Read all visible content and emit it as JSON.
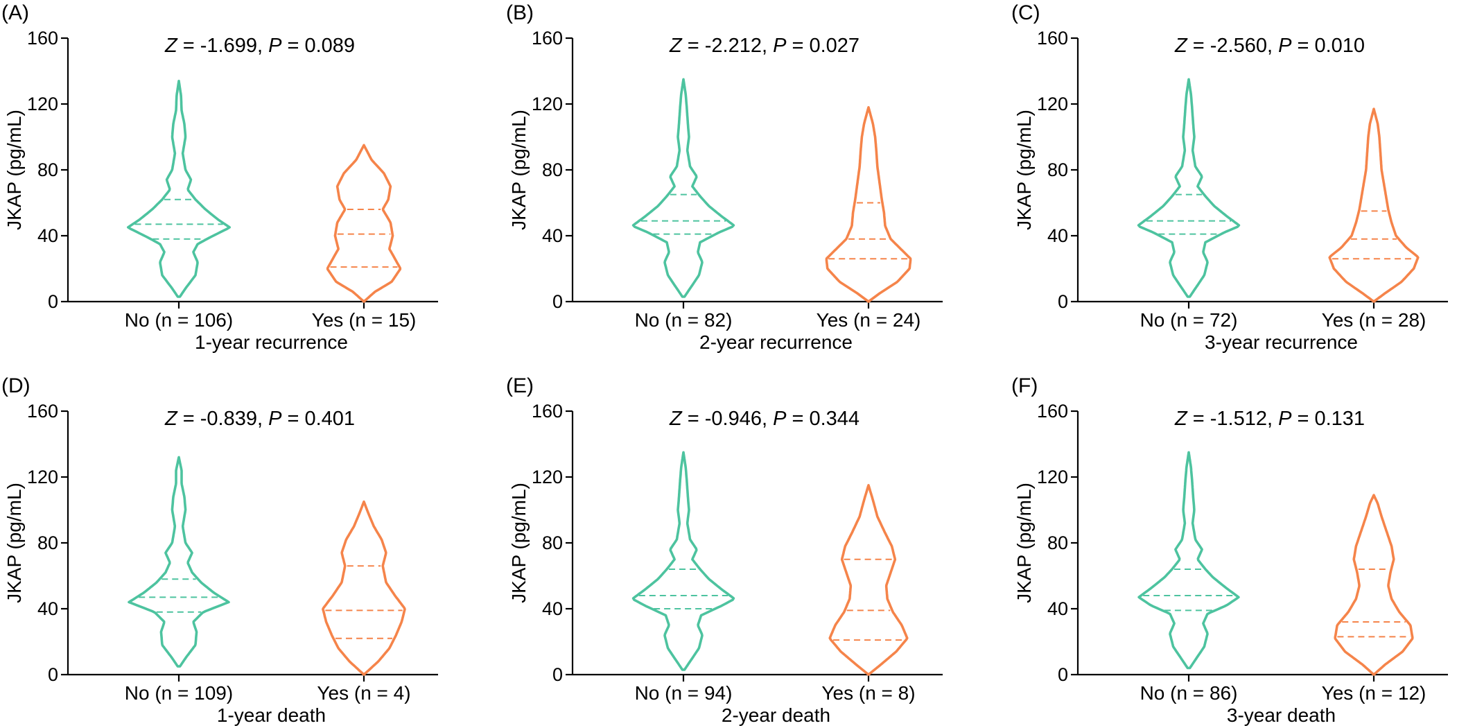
{
  "colors": {
    "no": "#4dc39f",
    "yes": "#f5844a"
  },
  "chart_data": [
    {
      "type": "violin",
      "panel": "(A)",
      "stat": {
        "z_label": "Z",
        "z": "-1.699",
        "p_label": "P",
        "p": "0.089"
      },
      "ylabel": "JKAP (pg/mL)",
      "ylim": [
        0,
        160
      ],
      "yticks": [
        0,
        40,
        80,
        120,
        160
      ],
      "xlabel": "1-year recurrence",
      "categories": [
        "No (n = 106)",
        "Yes (n = 15)"
      ],
      "series": [
        {
          "group": "No",
          "range": [
            3,
            134
          ],
          "quartiles": [
            38,
            47,
            62
          ],
          "profile": [
            [
              3,
              0.02
            ],
            [
              8,
              0.12
            ],
            [
              16,
              0.3
            ],
            [
              24,
              0.34
            ],
            [
              30,
              0.26
            ],
            [
              35,
              0.34
            ],
            [
              40,
              0.62
            ],
            [
              45,
              0.92
            ],
            [
              50,
              0.7
            ],
            [
              56,
              0.48
            ],
            [
              62,
              0.3
            ],
            [
              68,
              0.16
            ],
            [
              74,
              0.22
            ],
            [
              80,
              0.12
            ],
            [
              90,
              0.07
            ],
            [
              100,
              0.12
            ],
            [
              108,
              0.1
            ],
            [
              116,
              0.05
            ],
            [
              125,
              0.04
            ],
            [
              134,
              0.0
            ]
          ]
        },
        {
          "group": "Yes",
          "range": [
            0,
            95
          ],
          "quartiles": [
            21,
            41,
            56
          ],
          "profile": [
            [
              0,
              0.0
            ],
            [
              6,
              0.2
            ],
            [
              12,
              0.5
            ],
            [
              20,
              0.66
            ],
            [
              26,
              0.56
            ],
            [
              32,
              0.46
            ],
            [
              40,
              0.52
            ],
            [
              48,
              0.48
            ],
            [
              56,
              0.34
            ],
            [
              62,
              0.44
            ],
            [
              70,
              0.48
            ],
            [
              78,
              0.36
            ],
            [
              86,
              0.14
            ],
            [
              95,
              0.0
            ]
          ]
        }
      ]
    },
    {
      "type": "violin",
      "panel": "(B)",
      "stat": {
        "z_label": "Z",
        "z": "-2.212",
        "p_label": "P",
        "p": "0.027"
      },
      "ylabel": "JKAP (pg/mL)",
      "ylim": [
        0,
        160
      ],
      "yticks": [
        0,
        40,
        80,
        120,
        160
      ],
      "xlabel": "2-year recurrence",
      "categories": [
        "No (n = 82)",
        "Yes (n = 24)"
      ],
      "series": [
        {
          "group": "No",
          "range": [
            3,
            135
          ],
          "quartiles": [
            41,
            49,
            65
          ],
          "profile": [
            [
              3,
              0.02
            ],
            [
              8,
              0.12
            ],
            [
              16,
              0.28
            ],
            [
              24,
              0.34
            ],
            [
              30,
              0.26
            ],
            [
              36,
              0.3
            ],
            [
              42,
              0.64
            ],
            [
              46,
              0.92
            ],
            [
              52,
              0.68
            ],
            [
              58,
              0.46
            ],
            [
              64,
              0.3
            ],
            [
              70,
              0.16
            ],
            [
              76,
              0.24
            ],
            [
              82,
              0.12
            ],
            [
              92,
              0.07
            ],
            [
              100,
              0.1
            ],
            [
              108,
              0.08
            ],
            [
              118,
              0.06
            ],
            [
              126,
              0.04
            ],
            [
              135,
              0.0
            ]
          ]
        },
        {
          "group": "Yes",
          "range": [
            0,
            118
          ],
          "quartiles": [
            26,
            38,
            60
          ],
          "profile": [
            [
              0,
              0.0
            ],
            [
              5,
              0.2
            ],
            [
              12,
              0.52
            ],
            [
              20,
              0.74
            ],
            [
              26,
              0.76
            ],
            [
              32,
              0.58
            ],
            [
              38,
              0.4
            ],
            [
              46,
              0.3
            ],
            [
              54,
              0.28
            ],
            [
              62,
              0.24
            ],
            [
              72,
              0.2
            ],
            [
              82,
              0.16
            ],
            [
              92,
              0.14
            ],
            [
              100,
              0.12
            ],
            [
              108,
              0.08
            ],
            [
              118,
              0.0
            ]
          ]
        }
      ]
    },
    {
      "type": "violin",
      "panel": "(C)",
      "stat": {
        "z_label": "Z",
        "z": "-2.560",
        "p_label": "P",
        "p": "0.010"
      },
      "ylabel": "JKAP (pg/mL)",
      "ylim": [
        0,
        160
      ],
      "yticks": [
        0,
        40,
        80,
        120,
        160
      ],
      "xlabel": "3-year recurrence",
      "categories": [
        "No (n = 72)",
        "Yes (n = 28)"
      ],
      "series": [
        {
          "group": "No",
          "range": [
            3,
            135
          ],
          "quartiles": [
            41,
            49,
            65
          ],
          "profile": [
            [
              3,
              0.02
            ],
            [
              8,
              0.12
            ],
            [
              16,
              0.28
            ],
            [
              24,
              0.34
            ],
            [
              30,
              0.26
            ],
            [
              36,
              0.3
            ],
            [
              42,
              0.64
            ],
            [
              46,
              0.92
            ],
            [
              52,
              0.68
            ],
            [
              58,
              0.46
            ],
            [
              64,
              0.3
            ],
            [
              70,
              0.16
            ],
            [
              76,
              0.24
            ],
            [
              82,
              0.12
            ],
            [
              92,
              0.07
            ],
            [
              100,
              0.1
            ],
            [
              108,
              0.08
            ],
            [
              118,
              0.06
            ],
            [
              126,
              0.04
            ],
            [
              135,
              0.0
            ]
          ]
        },
        {
          "group": "Yes",
          "range": [
            0,
            117
          ],
          "quartiles": [
            26,
            38,
            55
          ],
          "profile": [
            [
              0,
              0.0
            ],
            [
              5,
              0.2
            ],
            [
              12,
              0.5
            ],
            [
              20,
              0.72
            ],
            [
              27,
              0.8
            ],
            [
              33,
              0.58
            ],
            [
              40,
              0.4
            ],
            [
              48,
              0.32
            ],
            [
              56,
              0.26
            ],
            [
              64,
              0.22
            ],
            [
              72,
              0.18
            ],
            [
              80,
              0.14
            ],
            [
              90,
              0.12
            ],
            [
              100,
              0.1
            ],
            [
              108,
              0.07
            ],
            [
              117,
              0.0
            ]
          ]
        }
      ]
    },
    {
      "type": "violin",
      "panel": "(D)",
      "stat": {
        "z_label": "Z",
        "z": "-0.839",
        "p_label": "P",
        "p": "0.401"
      },
      "ylabel": "JKAP (pg/mL)",
      "ylim": [
        0,
        160
      ],
      "yticks": [
        0,
        40,
        80,
        120,
        160
      ],
      "xlabel": "1-year death",
      "categories": [
        "No (n = 109)",
        "Yes (n = 4)"
      ],
      "series": [
        {
          "group": "No",
          "range": [
            5,
            132
          ],
          "quartiles": [
            38,
            47,
            58
          ],
          "profile": [
            [
              5,
              0.02
            ],
            [
              10,
              0.12
            ],
            [
              18,
              0.3
            ],
            [
              26,
              0.32
            ],
            [
              32,
              0.26
            ],
            [
              38,
              0.44
            ],
            [
              44,
              0.9
            ],
            [
              50,
              0.62
            ],
            [
              56,
              0.4
            ],
            [
              62,
              0.24
            ],
            [
              68,
              0.16
            ],
            [
              74,
              0.24
            ],
            [
              80,
              0.12
            ],
            [
              90,
              0.07
            ],
            [
              100,
              0.12
            ],
            [
              108,
              0.1
            ],
            [
              116,
              0.05
            ],
            [
              124,
              0.05
            ],
            [
              132,
              0.0
            ]
          ]
        },
        {
          "group": "Yes",
          "range": [
            0,
            105
          ],
          "quartiles": [
            22,
            39,
            66
          ],
          "profile": [
            [
              0,
              0.0
            ],
            [
              8,
              0.26
            ],
            [
              16,
              0.46
            ],
            [
              24,
              0.58
            ],
            [
              32,
              0.68
            ],
            [
              40,
              0.74
            ],
            [
              48,
              0.56
            ],
            [
              56,
              0.4
            ],
            [
              66,
              0.34
            ],
            [
              74,
              0.4
            ],
            [
              82,
              0.32
            ],
            [
              90,
              0.18
            ],
            [
              98,
              0.08
            ],
            [
              105,
              0.0
            ]
          ]
        }
      ]
    },
    {
      "type": "violin",
      "panel": "(E)",
      "stat": {
        "z_label": "Z",
        "z": "-0.946",
        "p_label": "P",
        "p": "0.344"
      },
      "ylabel": "JKAP (pg/mL)",
      "ylim": [
        0,
        160
      ],
      "yticks": [
        0,
        40,
        80,
        120,
        160
      ],
      "xlabel": "2-year death",
      "categories": [
        "No (n = 94)",
        "Yes (n = 8)"
      ],
      "series": [
        {
          "group": "No",
          "range": [
            3,
            135
          ],
          "quartiles": [
            40,
            48,
            64
          ],
          "profile": [
            [
              3,
              0.02
            ],
            [
              8,
              0.12
            ],
            [
              16,
              0.28
            ],
            [
              24,
              0.34
            ],
            [
              30,
              0.26
            ],
            [
              36,
              0.32
            ],
            [
              42,
              0.7
            ],
            [
              46,
              0.92
            ],
            [
              52,
              0.68
            ],
            [
              58,
              0.46
            ],
            [
              64,
              0.3
            ],
            [
              70,
              0.16
            ],
            [
              76,
              0.24
            ],
            [
              82,
              0.12
            ],
            [
              92,
              0.07
            ],
            [
              100,
              0.1
            ],
            [
              108,
              0.08
            ],
            [
              118,
              0.06
            ],
            [
              126,
              0.04
            ],
            [
              135,
              0.0
            ]
          ]
        },
        {
          "group": "Yes",
          "range": [
            0,
            115
          ],
          "quartiles": [
            21,
            39,
            70
          ],
          "profile": [
            [
              0,
              0.0
            ],
            [
              6,
              0.22
            ],
            [
              14,
              0.5
            ],
            [
              22,
              0.7
            ],
            [
              30,
              0.6
            ],
            [
              38,
              0.44
            ],
            [
              46,
              0.34
            ],
            [
              54,
              0.32
            ],
            [
              62,
              0.4
            ],
            [
              70,
              0.48
            ],
            [
              78,
              0.42
            ],
            [
              86,
              0.3
            ],
            [
              96,
              0.16
            ],
            [
              106,
              0.08
            ],
            [
              115,
              0.0
            ]
          ]
        }
      ]
    },
    {
      "type": "violin",
      "panel": "(F)",
      "stat": {
        "z_label": "Z",
        "z": "-1.512",
        "p_label": "P",
        "p": "0.131"
      },
      "ylabel": "JKAP (pg/mL)",
      "ylim": [
        0,
        160
      ],
      "yticks": [
        0,
        40,
        80,
        120,
        160
      ],
      "xlabel": "3-year death",
      "categories": [
        "No (n = 86)",
        "Yes (n = 12)"
      ],
      "series": [
        {
          "group": "No",
          "range": [
            4,
            135
          ],
          "quartiles": [
            39,
            48,
            64
          ],
          "profile": [
            [
              4,
              0.02
            ],
            [
              9,
              0.12
            ],
            [
              17,
              0.28
            ],
            [
              25,
              0.34
            ],
            [
              31,
              0.26
            ],
            [
              37,
              0.34
            ],
            [
              42,
              0.68
            ],
            [
              47,
              0.9
            ],
            [
              53,
              0.66
            ],
            [
              59,
              0.44
            ],
            [
              64,
              0.3
            ],
            [
              70,
              0.16
            ],
            [
              76,
              0.24
            ],
            [
              82,
              0.12
            ],
            [
              92,
              0.07
            ],
            [
              100,
              0.1
            ],
            [
              108,
              0.08
            ],
            [
              118,
              0.06
            ],
            [
              126,
              0.04
            ],
            [
              135,
              0.0
            ]
          ]
        },
        {
          "group": "Yes",
          "range": [
            0,
            109
          ],
          "quartiles": [
            23,
            32,
            64
          ],
          "profile": [
            [
              0,
              0.0
            ],
            [
              6,
              0.2
            ],
            [
              14,
              0.52
            ],
            [
              22,
              0.7
            ],
            [
              30,
              0.66
            ],
            [
              38,
              0.46
            ],
            [
              46,
              0.32
            ],
            [
              54,
              0.26
            ],
            [
              62,
              0.3
            ],
            [
              70,
              0.36
            ],
            [
              78,
              0.32
            ],
            [
              86,
              0.24
            ],
            [
              96,
              0.14
            ],
            [
              104,
              0.07
            ],
            [
              109,
              0.0
            ]
          ]
        }
      ]
    }
  ]
}
